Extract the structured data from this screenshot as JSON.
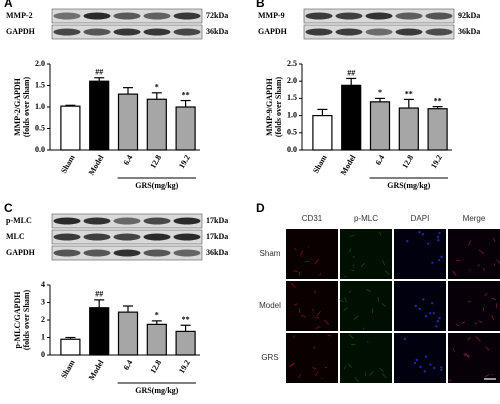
{
  "chart_data": [
    {
      "type": "bar",
      "label": "A",
      "blots": [
        [
          "MMP-2",
          "72kDa"
        ],
        [
          "GAPDH",
          "36kDa"
        ]
      ],
      "y_label": [
        "MMP-2/GAPDH",
        "(folds over Sham)"
      ],
      "x_label": "GRS(mg/kg)",
      "categories": [
        "Sham",
        "Model",
        "6.4",
        "12.8",
        "19.2"
      ],
      "values": [
        1.02,
        1.6,
        1.3,
        1.18,
        1.0
      ],
      "errors": [
        0.02,
        0.08,
        0.15,
        0.15,
        0.15
      ],
      "annotations": [
        null,
        "##",
        null,
        "*",
        "**"
      ],
      "colors": [
        "#ffffff",
        "#000000",
        "#a6a6a6",
        "#a6a6a6",
        "#a6a6a6"
      ],
      "ylim": [
        0,
        2
      ],
      "yticks": [
        {
          "value": 0,
          "label": "0.0"
        },
        0.5,
        {
          "value": 1,
          "label": "1.0"
        },
        1.5,
        {
          "value": 2,
          "label": "2.0"
        }
      ]
    },
    {
      "type": "bar",
      "label": "B",
      "blots": [
        [
          "MMP-9",
          "92kDa"
        ],
        [
          "GAPDH",
          "36kDa"
        ]
      ],
      "y_label": [
        "MMP-9/GAPDH",
        "(folds over Sham)"
      ],
      "x_label": "GRS(mg/kg)",
      "categories": [
        "Sham",
        "Model",
        "6.4",
        "12.8",
        "19.2"
      ],
      "values": [
        1.0,
        1.88,
        1.4,
        1.22,
        1.2
      ],
      "errors": [
        0.18,
        0.2,
        0.1,
        0.25,
        0.06
      ],
      "annotations": [
        null,
        "##",
        "*",
        "**",
        "**"
      ],
      "colors": [
        "#ffffff",
        "#000000",
        "#a6a6a6",
        "#a6a6a6",
        "#a6a6a6"
      ],
      "ylim": [
        0,
        2.5
      ],
      "yticks": [
        {
          "value": 0,
          "label": "0.0"
        },
        0.5,
        {
          "value": 1,
          "label": "1.0"
        },
        1.5,
        {
          "value": 2,
          "label": "2.0"
        },
        2.5
      ]
    },
    {
      "type": "bar",
      "label": "C",
      "blots": [
        [
          "p-MLC",
          "17kDa"
        ],
        [
          "MLC",
          "17kDa"
        ],
        [
          "GAPDH",
          "36kDa"
        ]
      ],
      "y_label": [
        "p-MLC/GAPDH",
        "(folds over Sham)"
      ],
      "x_label": "GRS(mg/kg)",
      "categories": [
        "Sham",
        "Model",
        "6.4",
        "12.8",
        "19.2"
      ],
      "values": [
        0.9,
        2.7,
        2.45,
        1.75,
        1.35
      ],
      "errors": [
        0.1,
        0.45,
        0.35,
        0.2,
        0.35
      ],
      "annotations": [
        null,
        "##",
        null,
        "*",
        "**"
      ],
      "colors": [
        "#ffffff",
        "#000000",
        "#a6a6a6",
        "#a6a6a6",
        "#a6a6a6"
      ],
      "ylim": [
        0,
        4
      ],
      "yticks": [
        0,
        1,
        2,
        3,
        4
      ]
    }
  ],
  "image_grid": {
    "label": "D",
    "columns": [
      "CD31",
      "p-MLC",
      "DAPI",
      "Merge"
    ],
    "rows": [
      "Sham",
      "Model",
      "GRS"
    ]
  }
}
